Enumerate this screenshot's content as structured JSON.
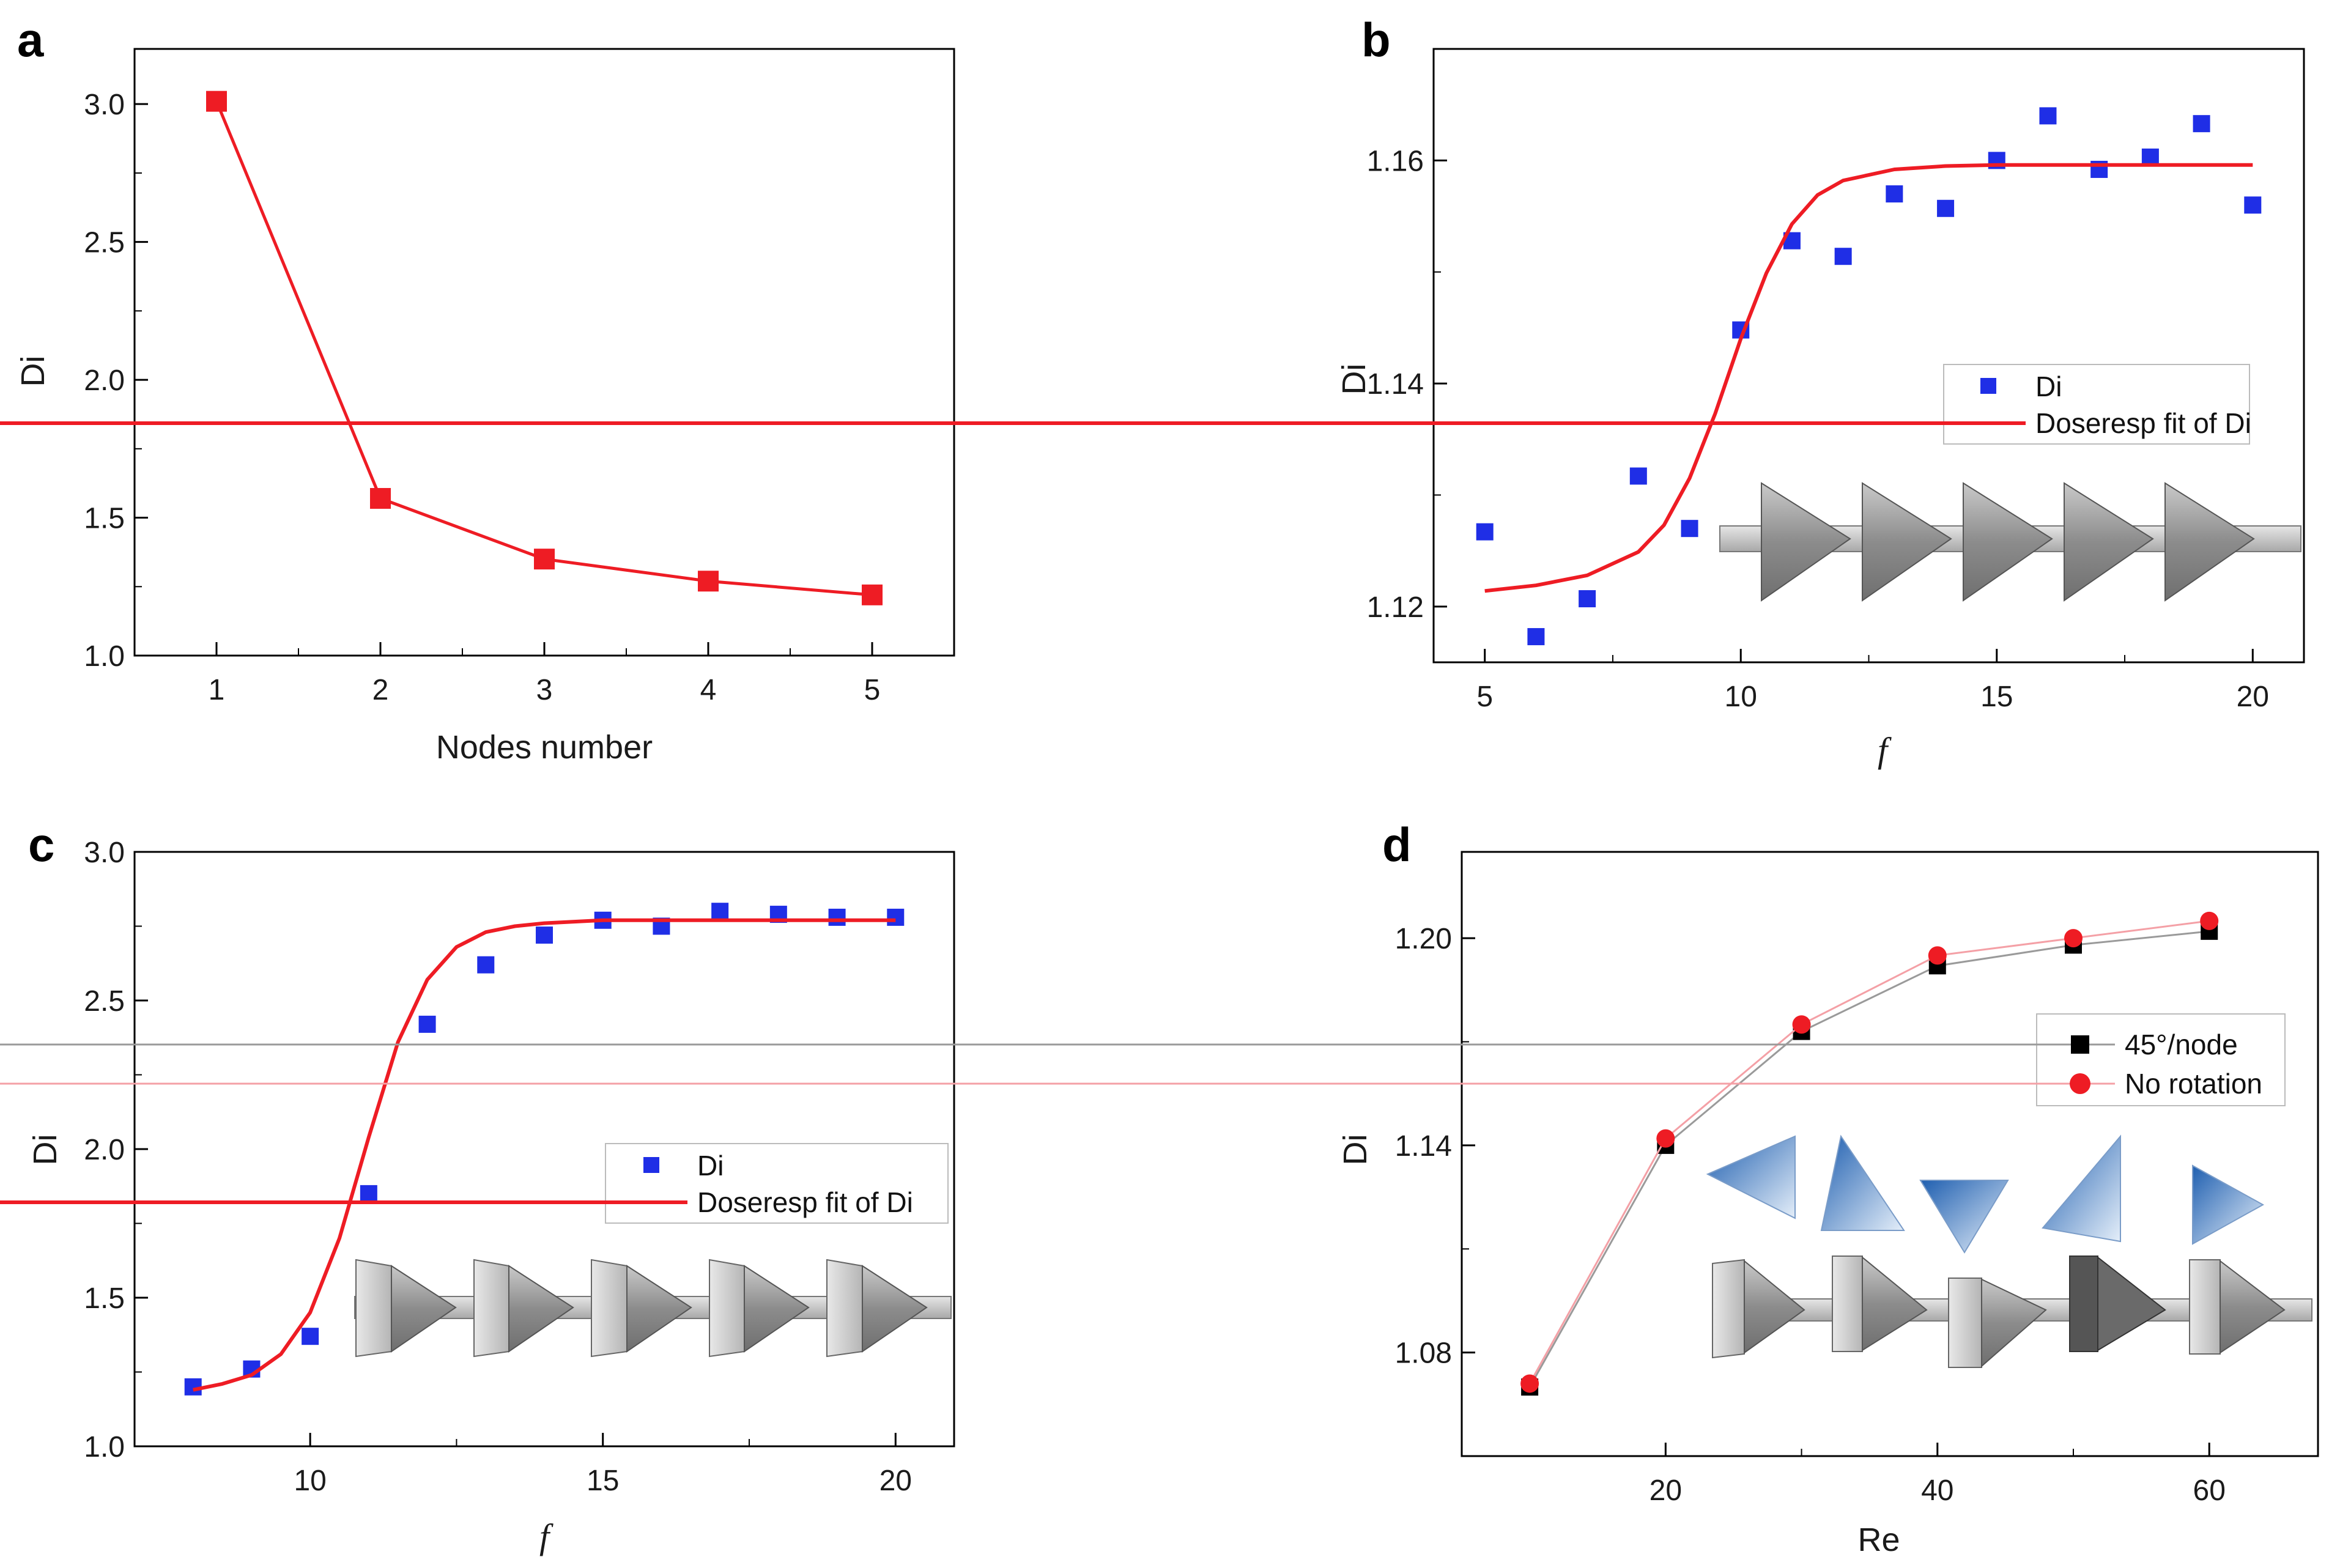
{
  "colors": {
    "red": "#ee1c24",
    "blue": "#1f2ee6",
    "black": "#000000",
    "pink_line": "#f4a0a6",
    "gray_line": "#9a9a9a"
  },
  "chart_data": [
    {
      "panel": "a",
      "type": "line",
      "title": "",
      "xlabel": "Nodes number",
      "ylabel": "Di",
      "xlim": [
        0.5,
        5.5
      ],
      "ylim": [
        1.0,
        3.2
      ],
      "xticks": [
        1,
        2,
        3,
        4,
        5
      ],
      "xtick_labels": [
        "1",
        "2",
        "3",
        "4",
        "5"
      ],
      "yticks": [
        1.0,
        1.5,
        2.0,
        2.5,
        3.0
      ],
      "ytick_labels": [
        "1.0",
        "1.5",
        "2.0",
        "2.5",
        "3.0"
      ],
      "series": [
        {
          "name": "Di",
          "marker": "square",
          "color": "#ee1c24",
          "x": [
            1,
            2,
            3,
            4,
            5
          ],
          "y": [
            3.01,
            1.57,
            1.35,
            1.27,
            1.22
          ]
        }
      ]
    },
    {
      "panel": "b",
      "type": "scatter",
      "title": "",
      "xlabel": "f",
      "ylabel": "Di",
      "xlim": [
        4,
        21
      ],
      "ylim": [
        1.115,
        1.17
      ],
      "xticks": [
        5,
        10,
        15,
        20
      ],
      "xtick_labels": [
        "5",
        "10",
        "15",
        "20"
      ],
      "yticks": [
        1.12,
        1.14,
        1.16
      ],
      "ytick_labels": [
        "1.12",
        "1.14",
        "1.16"
      ],
      "legend": [
        "Di",
        "Doseresp fit of Di"
      ],
      "legend_position": "right",
      "series": [
        {
          "name": "Di",
          "marker": "square",
          "color": "#1f2ee6",
          "x": [
            5,
            6,
            7,
            8,
            9,
            10,
            11,
            12,
            13,
            14,
            15,
            16,
            17,
            18,
            19,
            20
          ],
          "y": [
            1.1267,
            1.1173,
            1.1207,
            1.1317,
            1.127,
            1.1448,
            1.1528,
            1.1514,
            1.157,
            1.1557,
            1.16,
            1.164,
            1.1592,
            1.1603,
            1.1633,
            1.156
          ]
        },
        {
          "name": "Doseresp fit of Di",
          "kind": "fit",
          "color": "#ee1c24",
          "x": [
            5,
            6,
            7,
            8,
            8.5,
            9,
            9.5,
            10,
            10.5,
            11,
            11.5,
            12,
            13,
            14,
            15,
            16,
            17,
            18,
            19,
            20
          ],
          "y": [
            1.1214,
            1.1219,
            1.1228,
            1.1249,
            1.1273,
            1.1315,
            1.1373,
            1.144,
            1.1499,
            1.1543,
            1.1569,
            1.1582,
            1.1592,
            1.1595,
            1.1596,
            1.1596,
            1.1596,
            1.1596,
            1.1596,
            1.1596
          ]
        }
      ]
    },
    {
      "panel": "c",
      "type": "scatter",
      "title": "",
      "xlabel": "f",
      "ylabel": "Di",
      "xlim": [
        7,
        21
      ],
      "ylim": [
        1.0,
        3.0
      ],
      "xticks": [
        10,
        15,
        20
      ],
      "xtick_labels": [
        "10",
        "15",
        "20"
      ],
      "yticks": [
        1.0,
        1.5,
        2.0,
        2.5,
        3.0
      ],
      "ytick_labels": [
        "1.0",
        "1.5",
        "2.0",
        "2.5",
        "3.0"
      ],
      "legend": [
        "Di",
        "Doseresp fit of Di"
      ],
      "legend_position": "right",
      "series": [
        {
          "name": "Di",
          "marker": "square",
          "color": "#1f2ee6",
          "x": [
            8,
            9,
            10,
            11,
            12,
            13,
            14,
            15,
            16,
            17,
            18,
            19,
            20
          ],
          "y": [
            1.2,
            1.26,
            1.37,
            1.85,
            2.42,
            2.62,
            2.72,
            2.77,
            2.75,
            2.8,
            2.79,
            2.78,
            2.78
          ]
        },
        {
          "name": "Doseresp fit of Di",
          "kind": "fit",
          "color": "#ee1c24",
          "x": [
            8,
            8.5,
            9,
            9.5,
            10,
            10.5,
            11,
            11.5,
            12,
            12.5,
            13,
            13.5,
            14,
            15,
            16,
            17,
            18,
            19,
            20
          ],
          "y": [
            1.19,
            1.21,
            1.24,
            1.31,
            1.45,
            1.7,
            2.04,
            2.36,
            2.57,
            2.68,
            2.73,
            2.75,
            2.76,
            2.77,
            2.77,
            2.77,
            2.77,
            2.77,
            2.77
          ]
        }
      ]
    },
    {
      "panel": "d",
      "type": "line",
      "title": "",
      "xlabel": "Re",
      "ylabel": "Di",
      "xlim": [
        5,
        68
      ],
      "ylim": [
        1.05,
        1.225
      ],
      "xticks": [
        20,
        40,
        60
      ],
      "xtick_labels": [
        "20",
        "40",
        "60"
      ],
      "yticks": [
        1.08,
        1.14,
        1.2
      ],
      "ytick_labels": [
        "1.08",
        "1.14",
        "1.20"
      ],
      "legend": [
        "45°/node",
        "No rotation"
      ],
      "legend_position": "right",
      "series": [
        {
          "name": "45°/node",
          "marker": "square",
          "color": "#000000",
          "line_color": "#9a9a9a",
          "x": [
            10,
            20,
            30,
            40,
            50,
            60
          ],
          "y": [
            1.07,
            1.14,
            1.173,
            1.192,
            1.198,
            1.202
          ]
        },
        {
          "name": "No rotation",
          "marker": "circle",
          "color": "#ee1c24",
          "line_color": "#f4a0a6",
          "x": [
            10,
            20,
            30,
            40,
            50,
            60
          ],
          "y": [
            1.071,
            1.142,
            1.175,
            1.195,
            1.2,
            1.205
          ]
        }
      ]
    }
  ]
}
